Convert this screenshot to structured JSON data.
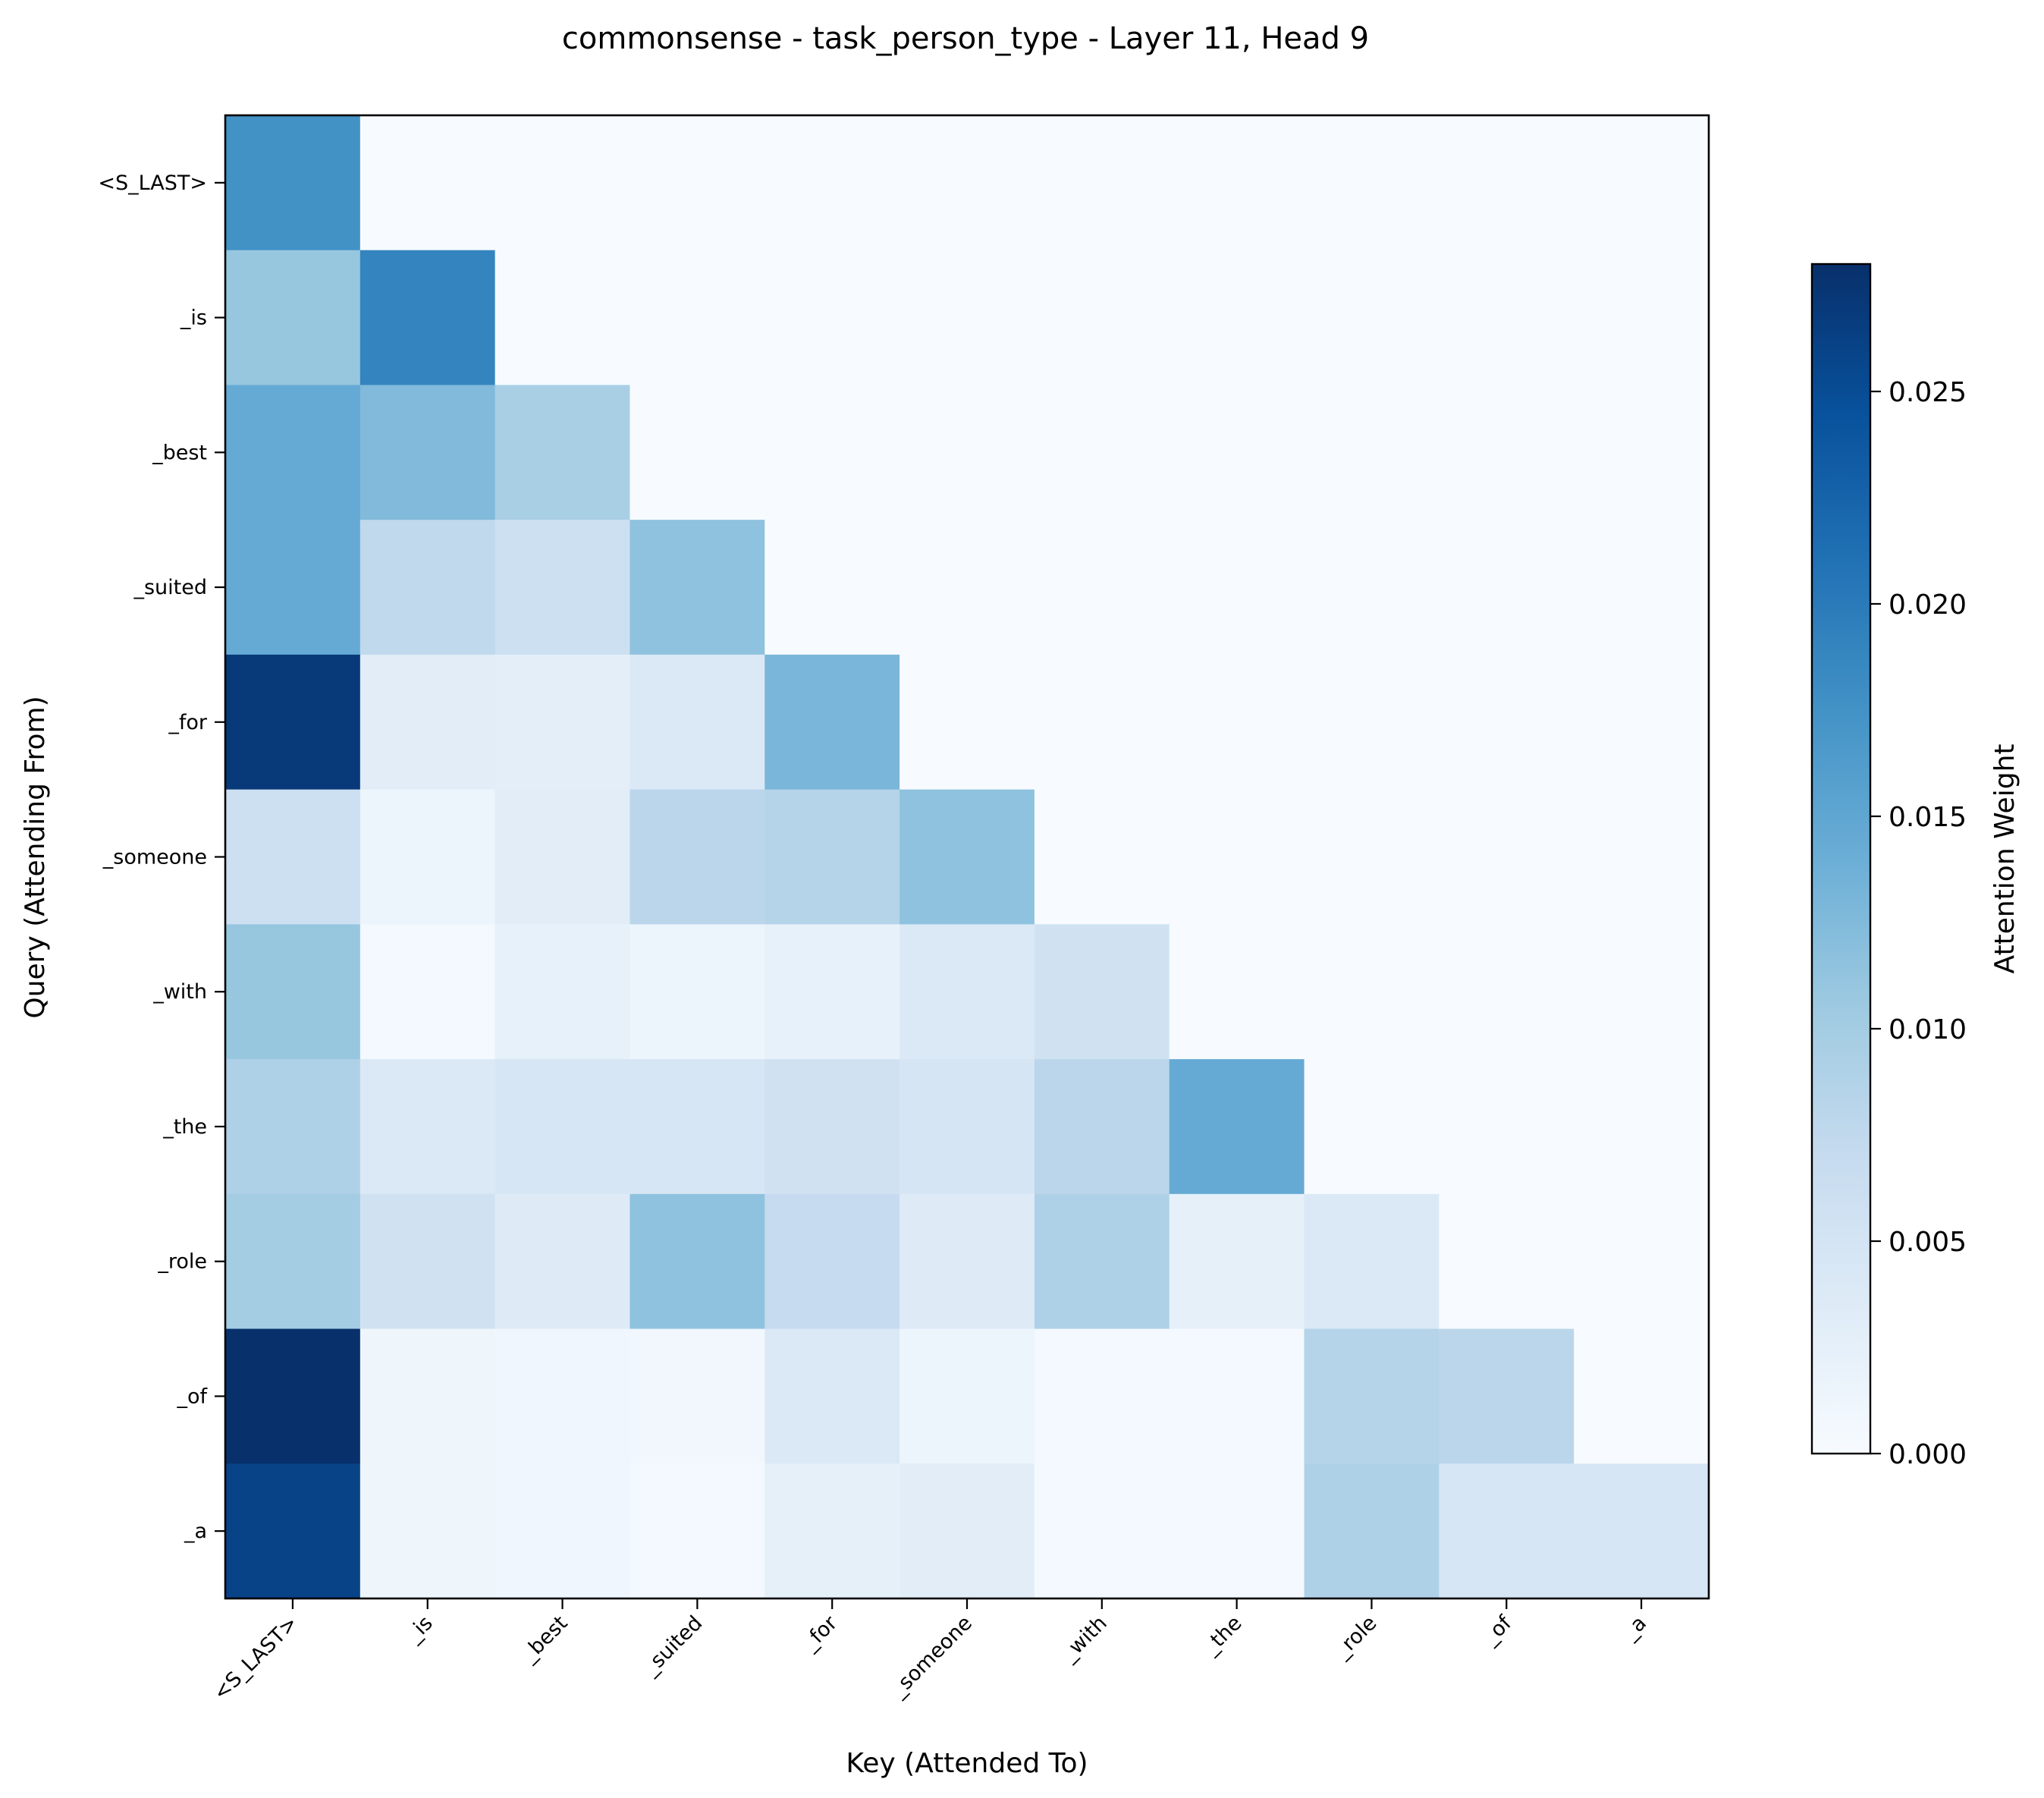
{
  "chart_data": {
    "type": "heatmap",
    "title": "commonsense - task_person_type - Layer 11, Head 9",
    "xlabel": "Key (Attended To)",
    "ylabel": "Query (Attending From)",
    "x_tokens": [
      "<S_LAST>",
      "_is",
      "_best",
      "_suited",
      "_for",
      "_someone",
      "_with",
      "_the",
      "_role",
      "_of",
      "_a"
    ],
    "y_tokens": [
      "<S_LAST>",
      "_is",
      "_best",
      "_suited",
      "_for",
      "_someone",
      "_with",
      "_the",
      "_role",
      "_of",
      "_a"
    ],
    "values": [
      [
        0.0175,
        0,
        0,
        0,
        0,
        0,
        0,
        0,
        0,
        0,
        0
      ],
      [
        0.011,
        0.019,
        0,
        0,
        0,
        0,
        0,
        0,
        0,
        0,
        0
      ],
      [
        0.0145,
        0.0125,
        0.0095,
        0,
        0,
        0,
        0,
        0,
        0,
        0,
        0
      ],
      [
        0.0145,
        0.0075,
        0.006,
        0.0115,
        0,
        0,
        0,
        0,
        0,
        0,
        0
      ],
      [
        0.027,
        0.003,
        0.0028,
        0.004,
        0.013,
        0,
        0,
        0,
        0,
        0,
        0
      ],
      [
        0.006,
        0.0015,
        0.003,
        0.008,
        0.0085,
        0.0115,
        0,
        0,
        0,
        0,
        0
      ],
      [
        0.011,
        0.0005,
        0.0022,
        0.0015,
        0.0022,
        0.004,
        0.0055,
        0,
        0,
        0,
        0
      ],
      [
        0.009,
        0.004,
        0.0045,
        0.0045,
        0.0055,
        0.0048,
        0.008,
        0.0145,
        0,
        0,
        0
      ],
      [
        0.01,
        0.0055,
        0.0035,
        0.0115,
        0.007,
        0.0035,
        0.009,
        0.0025,
        0.004,
        0,
        0
      ],
      [
        0.028,
        0.0012,
        0.001,
        0.0008,
        0.004,
        0.0015,
        0.0005,
        0.0005,
        0.0085,
        0.008,
        0
      ],
      [
        0.026,
        0.0012,
        0.001,
        0.0005,
        0.0025,
        0.003,
        0.0005,
        0.0005,
        0.009,
        0.0045,
        0.0045
      ]
    ],
    "colorbar": {
      "label": "Attention Weight",
      "vmin": 0,
      "vmax": 0.028,
      "ticks": [
        0.0,
        0.005,
        0.01,
        0.015,
        0.02,
        0.025
      ],
      "tick_labels": [
        "0.000",
        "0.005",
        "0.010",
        "0.015",
        "0.020",
        "0.025"
      ],
      "colormap": "Blues",
      "colormap_stops": [
        "#f7fbff",
        "#deebf7",
        "#c6dbef",
        "#9ecae1",
        "#6baed6",
        "#4292c6",
        "#2171b5",
        "#08519c",
        "#08306b"
      ]
    },
    "grid": false
  }
}
